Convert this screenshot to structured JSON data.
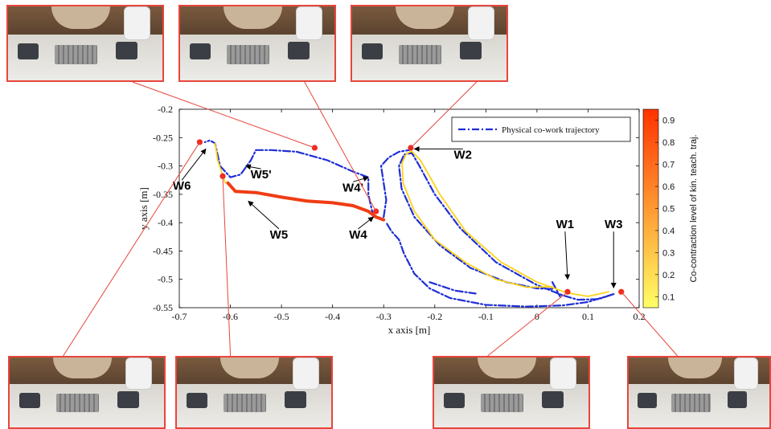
{
  "chart_data": {
    "type": "line",
    "xlabel": "x axis [m]",
    "ylabel": "y axis [m]",
    "xlim": [
      -0.7,
      0.2
    ],
    "ylim": [
      -0.55,
      -0.2
    ],
    "x_ticks": [
      "-0.7",
      "-0.6",
      "-0.5",
      "-0.4",
      "-0.3",
      "-0.2",
      "-0.1",
      "0",
      "0.1",
      "0.2"
    ],
    "y_ticks": [
      "-0.2",
      "-0.25",
      "-0.3",
      "-0.35",
      "-0.4",
      "-0.45",
      "-0.5",
      "-0.55"
    ],
    "legend": {
      "position": "top-right",
      "entries": [
        "Physical co-work trajectory"
      ]
    },
    "colorbar": {
      "label": "Co-contraction level of kin. teach. traj.",
      "ticks": [
        "0.1",
        "0.2",
        "0.3",
        "0.4",
        "0.5",
        "0.6",
        "0.7",
        "0.8",
        "0.9"
      ],
      "range": [
        0.05,
        0.95
      ],
      "colors": [
        "#ffff66",
        "#ff3300"
      ]
    },
    "series": [
      {
        "name": "Physical co-work trajectory",
        "style": "dash-dot",
        "color": "#1f2fd6",
        "paths": [
          [
            [
              0.03,
              -0.517
            ],
            [
              0.0,
              -0.516
            ],
            [
              -0.06,
              -0.505
            ],
            [
              -0.13,
              -0.48
            ],
            [
              -0.19,
              -0.44
            ],
            [
              -0.24,
              -0.39
            ],
            [
              -0.265,
              -0.34
            ],
            [
              -0.27,
              -0.3
            ],
            [
              -0.26,
              -0.28
            ],
            [
              -0.245,
              -0.277
            ],
            [
              -0.23,
              -0.3
            ],
            [
              -0.2,
              -0.35
            ],
            [
              -0.15,
              -0.41
            ],
            [
              -0.08,
              -0.47
            ],
            [
              0.0,
              -0.51
            ],
            [
              0.05,
              -0.528
            ],
            [
              0.08,
              -0.536
            ],
            [
              0.12,
              -0.535
            ],
            [
              0.15,
              -0.526
            ]
          ],
          [
            [
              0.15,
              -0.526
            ],
            [
              0.1,
              -0.54
            ],
            [
              0.05,
              -0.546
            ],
            [
              -0.02,
              -0.548
            ],
            [
              -0.1,
              -0.545
            ],
            [
              -0.17,
              -0.533
            ],
            [
              -0.21,
              -0.516
            ],
            [
              -0.24,
              -0.49
            ],
            [
              -0.26,
              -0.455
            ],
            [
              -0.27,
              -0.43
            ],
            [
              -0.285,
              -0.415
            ],
            [
              -0.295,
              -0.4
            ]
          ],
          [
            [
              -0.21,
              -0.505
            ],
            [
              -0.16,
              -0.52
            ],
            [
              -0.12,
              -0.525
            ]
          ],
          [
            [
              0.03,
              -0.505
            ],
            [
              0.045,
              -0.53
            ]
          ],
          [
            [
              -0.3,
              -0.39
            ],
            [
              -0.295,
              -0.36
            ],
            [
              -0.3,
              -0.33
            ],
            [
              -0.305,
              -0.3
            ],
            [
              -0.29,
              -0.285
            ],
            [
              -0.27,
              -0.275
            ],
            [
              -0.25,
              -0.272
            ]
          ],
          [
            [
              -0.32,
              -0.39
            ],
            [
              -0.325,
              -0.37
            ],
            [
              -0.33,
              -0.35
            ],
            [
              -0.33,
              -0.32
            ],
            [
              -0.36,
              -0.31
            ],
            [
              -0.41,
              -0.29
            ],
            [
              -0.47,
              -0.275
            ],
            [
              -0.52,
              -0.272
            ],
            [
              -0.55,
              -0.272
            ],
            [
              -0.56,
              -0.29
            ],
            [
              -0.58,
              -0.315
            ],
            [
              -0.6,
              -0.32
            ],
            [
              -0.62,
              -0.3
            ],
            [
              -0.63,
              -0.26
            ],
            [
              -0.64,
              -0.255
            ],
            [
              -0.65,
              -0.258
            ]
          ]
        ]
      },
      {
        "name": "",
        "style": "solid",
        "color": "#ffd21a",
        "paths": [
          [
            [
              0.03,
              -0.513
            ],
            [
              -0.02,
              -0.514
            ],
            [
              -0.08,
              -0.5
            ],
            [
              -0.14,
              -0.47
            ],
            [
              -0.2,
              -0.43
            ],
            [
              -0.24,
              -0.38
            ],
            [
              -0.262,
              -0.33
            ],
            [
              -0.264,
              -0.295
            ],
            [
              -0.255,
              -0.278
            ],
            [
              -0.245,
              -0.274
            ],
            [
              -0.228,
              -0.29
            ],
            [
              -0.19,
              -0.35
            ],
            [
              -0.14,
              -0.415
            ],
            [
              -0.07,
              -0.47
            ],
            [
              0.0,
              -0.505
            ],
            [
              0.06,
              -0.524
            ],
            [
              0.1,
              -0.53
            ],
            [
              0.14,
              -0.522
            ]
          ],
          [
            [
              -0.63,
              -0.26
            ],
            [
              -0.625,
              -0.29
            ],
            [
              -0.61,
              -0.33
            ]
          ]
        ]
      },
      {
        "name": "",
        "style": "thick",
        "color": "#f03c14",
        "paths": [
          [
            [
              -0.605,
              -0.33
            ],
            [
              -0.59,
              -0.345
            ],
            [
              -0.55,
              -0.347
            ],
            [
              -0.5,
              -0.355
            ],
            [
              -0.45,
              -0.362
            ],
            [
              -0.4,
              -0.365
            ],
            [
              -0.36,
              -0.37
            ],
            [
              -0.33,
              -0.38
            ],
            [
              -0.315,
              -0.39
            ],
            [
              -0.3,
              -0.395
            ]
          ]
        ]
      }
    ],
    "markers": [
      {
        "x": -0.66,
        "y": -0.258
      },
      {
        "x": -0.615,
        "y": -0.318
      },
      {
        "x": -0.435,
        "y": -0.268
      },
      {
        "x": -0.315,
        "y": -0.38
      },
      {
        "x": -0.247,
        "y": -0.268
      },
      {
        "x": 0.06,
        "y": -0.522
      },
      {
        "x": 0.165,
        "y": -0.522
      }
    ],
    "annotations": [
      {
        "text": "W6",
        "x": -0.695,
        "y": -0.342,
        "ax": -0.648,
        "ay": -0.27
      },
      {
        "text": "W5'",
        "x": -0.54,
        "y": -0.322,
        "ax": -0.57,
        "ay": -0.3
      },
      {
        "text": "W5",
        "x": -0.505,
        "y": -0.428,
        "ax": -0.565,
        "ay": -0.362
      },
      {
        "text": "W4'",
        "x": -0.36,
        "y": -0.345,
        "ax": -0.33,
        "ay": -0.32
      },
      {
        "text": "W4",
        "x": -0.35,
        "y": -0.428,
        "ax": -0.32,
        "ay": -0.39
      },
      {
        "text": "W2",
        "x": -0.145,
        "y": -0.287,
        "ax": -0.24,
        "ay": -0.27
      },
      {
        "text": "W1",
        "x": 0.055,
        "y": -0.41,
        "ax": 0.06,
        "ay": -0.5
      },
      {
        "text": "W3",
        "x": 0.15,
        "y": -0.41,
        "ax": 0.15,
        "ay": -0.515
      }
    ]
  },
  "photos": [
    {
      "id": "top-1",
      "marker": 2
    },
    {
      "id": "top-2",
      "marker": 3
    },
    {
      "id": "top-3",
      "marker": 4
    },
    {
      "id": "bottom-1",
      "marker": 0
    },
    {
      "id": "bottom-2",
      "marker": 1
    },
    {
      "id": "bottom-3",
      "marker": 5
    },
    {
      "id": "bottom-4",
      "marker": 6
    }
  ]
}
